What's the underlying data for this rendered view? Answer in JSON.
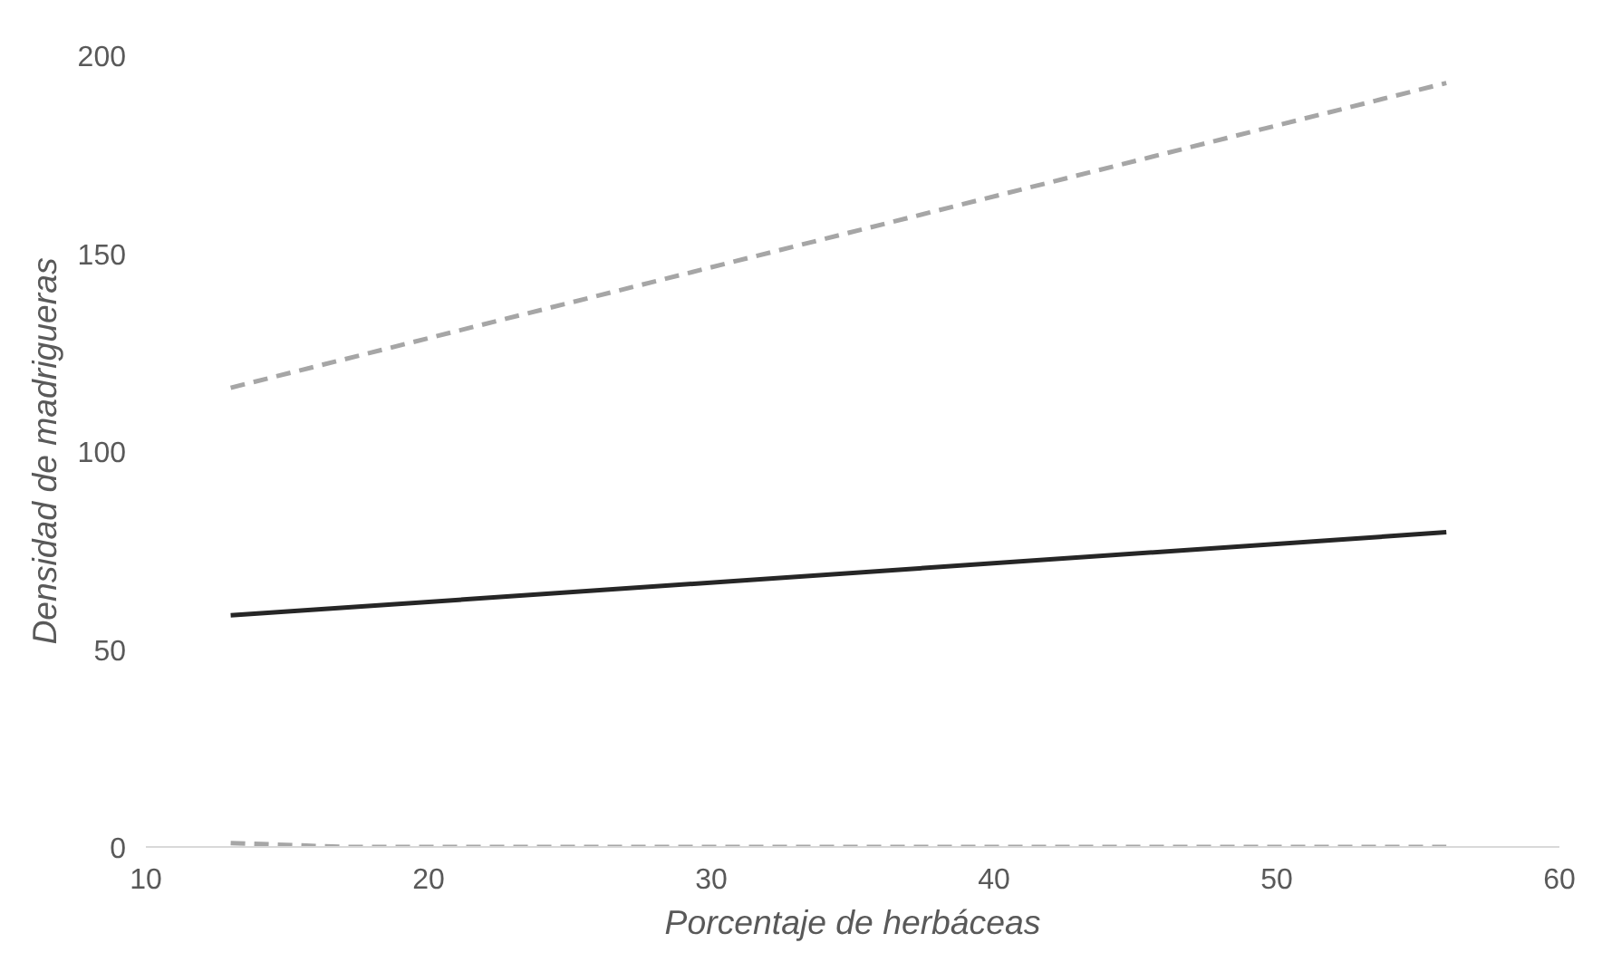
{
  "chart_data": {
    "type": "line",
    "xlabel": "Porcentaje de herbáceas",
    "ylabel": "Densidad de madrigueras",
    "xlim": [
      10,
      60
    ],
    "xticks": [
      10,
      20,
      30,
      40,
      50,
      60
    ],
    "ylim": [
      0,
      200
    ],
    "yticks": [
      0,
      50,
      100,
      150,
      200
    ],
    "grid": false,
    "marker": "none",
    "series": [
      {
        "x": [
          13,
          56
        ],
        "values": [
          58.5,
          79.5
        ],
        "color": "#262626",
        "line_style": "solid"
      },
      {
        "x": [
          13,
          56
        ],
        "values": [
          116,
          193
        ],
        "color": "#a6a6a6",
        "line_style": "dashed"
      },
      {
        "x": [
          13,
          17,
          56
        ],
        "values": [
          1,
          0,
          0
        ],
        "color": "#a6a6a6",
        "line_style": "dashed"
      }
    ]
  }
}
